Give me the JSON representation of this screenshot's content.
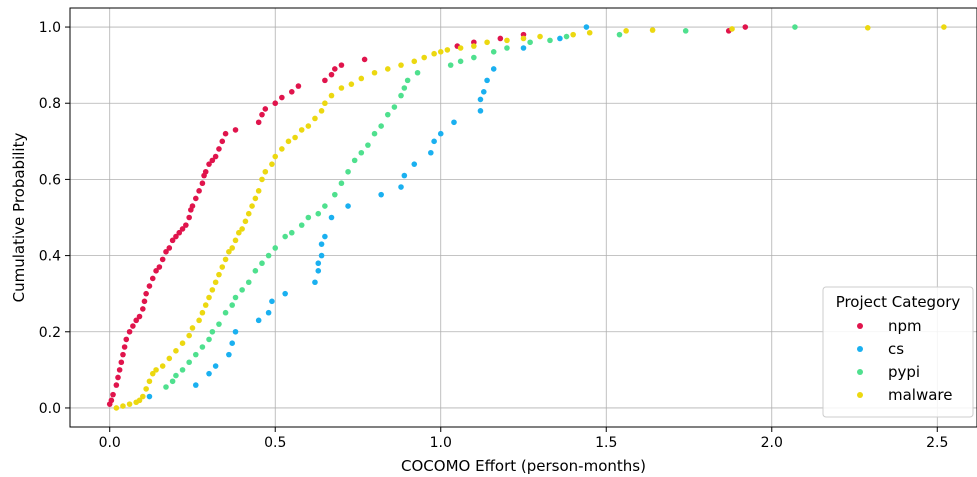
{
  "chart_data": {
    "type": "scatter",
    "title": "",
    "xlabel": "COCOMO Effort (person-months)",
    "ylabel": "Cumulative Probability",
    "xlim": [
      -0.12,
      2.62
    ],
    "ylim": [
      -0.05,
      1.05
    ],
    "xticks": [
      0.0,
      0.5,
      1.0,
      1.5,
      2.0,
      2.5
    ],
    "xtick_labels": [
      "0.0",
      "0.5",
      "1.0",
      "1.5",
      "2.0",
      "2.5"
    ],
    "yticks": [
      0.0,
      0.2,
      0.4,
      0.6,
      0.8,
      1.0
    ],
    "ytick_labels": [
      "0.0",
      "0.2",
      "0.4",
      "0.6",
      "0.8",
      "1.0"
    ],
    "grid": true,
    "legend": {
      "title": "Project Category",
      "placement": "lower-right"
    },
    "series": [
      {
        "name": "npm",
        "color": "#e0144c",
        "points": [
          [
            0.0,
            0.01
          ],
          [
            0.005,
            0.02
          ],
          [
            0.01,
            0.035
          ],
          [
            0.02,
            0.06
          ],
          [
            0.025,
            0.08
          ],
          [
            0.03,
            0.1
          ],
          [
            0.035,
            0.12
          ],
          [
            0.04,
            0.14
          ],
          [
            0.045,
            0.16
          ],
          [
            0.05,
            0.18
          ],
          [
            0.06,
            0.2
          ],
          [
            0.07,
            0.215
          ],
          [
            0.08,
            0.23
          ],
          [
            0.09,
            0.24
          ],
          [
            0.1,
            0.26
          ],
          [
            0.105,
            0.28
          ],
          [
            0.11,
            0.3
          ],
          [
            0.12,
            0.32
          ],
          [
            0.13,
            0.34
          ],
          [
            0.14,
            0.36
          ],
          [
            0.15,
            0.37
          ],
          [
            0.16,
            0.39
          ],
          [
            0.17,
            0.41
          ],
          [
            0.18,
            0.42
          ],
          [
            0.19,
            0.44
          ],
          [
            0.2,
            0.45
          ],
          [
            0.21,
            0.46
          ],
          [
            0.22,
            0.47
          ],
          [
            0.23,
            0.48
          ],
          [
            0.24,
            0.5
          ],
          [
            0.245,
            0.52
          ],
          [
            0.25,
            0.53
          ],
          [
            0.26,
            0.55
          ],
          [
            0.27,
            0.57
          ],
          [
            0.28,
            0.59
          ],
          [
            0.285,
            0.61
          ],
          [
            0.29,
            0.62
          ],
          [
            0.3,
            0.64
          ],
          [
            0.31,
            0.65
          ],
          [
            0.32,
            0.66
          ],
          [
            0.33,
            0.68
          ],
          [
            0.34,
            0.7
          ],
          [
            0.35,
            0.72
          ],
          [
            0.38,
            0.73
          ],
          [
            0.45,
            0.75
          ],
          [
            0.46,
            0.77
          ],
          [
            0.47,
            0.785
          ],
          [
            0.5,
            0.8
          ],
          [
            0.52,
            0.815
          ],
          [
            0.55,
            0.83
          ],
          [
            0.57,
            0.845
          ],
          [
            0.65,
            0.86
          ],
          [
            0.67,
            0.875
          ],
          [
            0.68,
            0.89
          ],
          [
            0.7,
            0.9
          ],
          [
            0.77,
            0.915
          ],
          [
            1.05,
            0.95
          ],
          [
            1.1,
            0.96
          ],
          [
            1.18,
            0.97
          ],
          [
            1.25,
            0.98
          ],
          [
            1.87,
            0.99
          ],
          [
            1.92,
            1.0
          ]
        ]
      },
      {
        "name": "cs",
        "color": "#1ab0f0",
        "points": [
          [
            0.12,
            0.03
          ],
          [
            0.26,
            0.06
          ],
          [
            0.3,
            0.09
          ],
          [
            0.32,
            0.11
          ],
          [
            0.36,
            0.14
          ],
          [
            0.37,
            0.17
          ],
          [
            0.38,
            0.2
          ],
          [
            0.45,
            0.23
          ],
          [
            0.48,
            0.25
          ],
          [
            0.49,
            0.28
          ],
          [
            0.53,
            0.3
          ],
          [
            0.62,
            0.33
          ],
          [
            0.63,
            0.36
          ],
          [
            0.63,
            0.38
          ],
          [
            0.64,
            0.4
          ],
          [
            0.64,
            0.43
          ],
          [
            0.65,
            0.45
          ],
          [
            0.67,
            0.5
          ],
          [
            0.72,
            0.53
          ],
          [
            0.82,
            0.56
          ],
          [
            0.88,
            0.58
          ],
          [
            0.89,
            0.61
          ],
          [
            0.92,
            0.64
          ],
          [
            0.97,
            0.67
          ],
          [
            0.98,
            0.7
          ],
          [
            1.0,
            0.72
          ],
          [
            1.04,
            0.75
          ],
          [
            1.12,
            0.78
          ],
          [
            1.12,
            0.81
          ],
          [
            1.13,
            0.83
          ],
          [
            1.14,
            0.86
          ],
          [
            1.16,
            0.89
          ],
          [
            1.25,
            0.945
          ],
          [
            1.36,
            0.97
          ],
          [
            1.44,
            1.0
          ]
        ]
      },
      {
        "name": "pypi",
        "color": "#4fe08e",
        "points": [
          [
            0.17,
            0.055
          ],
          [
            0.19,
            0.07
          ],
          [
            0.2,
            0.085
          ],
          [
            0.22,
            0.1
          ],
          [
            0.24,
            0.12
          ],
          [
            0.26,
            0.14
          ],
          [
            0.28,
            0.16
          ],
          [
            0.3,
            0.18
          ],
          [
            0.31,
            0.2
          ],
          [
            0.33,
            0.22
          ],
          [
            0.35,
            0.25
          ],
          [
            0.37,
            0.27
          ],
          [
            0.38,
            0.29
          ],
          [
            0.4,
            0.31
          ],
          [
            0.42,
            0.33
          ],
          [
            0.44,
            0.36
          ],
          [
            0.46,
            0.38
          ],
          [
            0.48,
            0.4
          ],
          [
            0.5,
            0.42
          ],
          [
            0.53,
            0.45
          ],
          [
            0.55,
            0.46
          ],
          [
            0.58,
            0.48
          ],
          [
            0.6,
            0.5
          ],
          [
            0.63,
            0.51
          ],
          [
            0.65,
            0.53
          ],
          [
            0.68,
            0.56
          ],
          [
            0.7,
            0.59
          ],
          [
            0.72,
            0.62
          ],
          [
            0.74,
            0.65
          ],
          [
            0.76,
            0.67
          ],
          [
            0.78,
            0.69
          ],
          [
            0.8,
            0.72
          ],
          [
            0.82,
            0.74
          ],
          [
            0.84,
            0.77
          ],
          [
            0.86,
            0.79
          ],
          [
            0.88,
            0.82
          ],
          [
            0.89,
            0.84
          ],
          [
            0.9,
            0.86
          ],
          [
            0.93,
            0.88
          ],
          [
            1.03,
            0.9
          ],
          [
            1.06,
            0.91
          ],
          [
            1.1,
            0.92
          ],
          [
            1.16,
            0.935
          ],
          [
            1.2,
            0.945
          ],
          [
            1.27,
            0.96
          ],
          [
            1.33,
            0.965
          ],
          [
            1.38,
            0.975
          ],
          [
            1.54,
            0.98
          ],
          [
            1.74,
            0.99
          ],
          [
            2.07,
            1.0
          ]
        ]
      },
      {
        "name": "malware",
        "color": "#ecd810",
        "points": [
          [
            0.02,
            0.0
          ],
          [
            0.04,
            0.005
          ],
          [
            0.06,
            0.01
          ],
          [
            0.08,
            0.015
          ],
          [
            0.09,
            0.02
          ],
          [
            0.1,
            0.03
          ],
          [
            0.11,
            0.05
          ],
          [
            0.12,
            0.07
          ],
          [
            0.13,
            0.09
          ],
          [
            0.14,
            0.1
          ],
          [
            0.16,
            0.11
          ],
          [
            0.18,
            0.13
          ],
          [
            0.2,
            0.15
          ],
          [
            0.22,
            0.17
          ],
          [
            0.24,
            0.19
          ],
          [
            0.25,
            0.21
          ],
          [
            0.27,
            0.23
          ],
          [
            0.28,
            0.25
          ],
          [
            0.29,
            0.27
          ],
          [
            0.3,
            0.29
          ],
          [
            0.31,
            0.31
          ],
          [
            0.32,
            0.33
          ],
          [
            0.33,
            0.35
          ],
          [
            0.34,
            0.37
          ],
          [
            0.35,
            0.39
          ],
          [
            0.36,
            0.41
          ],
          [
            0.37,
            0.42
          ],
          [
            0.38,
            0.44
          ],
          [
            0.39,
            0.46
          ],
          [
            0.4,
            0.47
          ],
          [
            0.41,
            0.49
          ],
          [
            0.42,
            0.51
          ],
          [
            0.43,
            0.53
          ],
          [
            0.44,
            0.55
          ],
          [
            0.45,
            0.57
          ],
          [
            0.46,
            0.6
          ],
          [
            0.47,
            0.62
          ],
          [
            0.49,
            0.64
          ],
          [
            0.5,
            0.66
          ],
          [
            0.52,
            0.68
          ],
          [
            0.54,
            0.7
          ],
          [
            0.56,
            0.71
          ],
          [
            0.58,
            0.73
          ],
          [
            0.6,
            0.74
          ],
          [
            0.62,
            0.76
          ],
          [
            0.64,
            0.78
          ],
          [
            0.65,
            0.8
          ],
          [
            0.67,
            0.82
          ],
          [
            0.7,
            0.84
          ],
          [
            0.73,
            0.85
          ],
          [
            0.76,
            0.865
          ],
          [
            0.8,
            0.88
          ],
          [
            0.84,
            0.89
          ],
          [
            0.88,
            0.9
          ],
          [
            0.92,
            0.91
          ],
          [
            0.95,
            0.92
          ],
          [
            0.98,
            0.93
          ],
          [
            1.0,
            0.935
          ],
          [
            1.02,
            0.94
          ],
          [
            1.06,
            0.945
          ],
          [
            1.1,
            0.95
          ],
          [
            1.14,
            0.96
          ],
          [
            1.2,
            0.965
          ],
          [
            1.25,
            0.97
          ],
          [
            1.3,
            0.975
          ],
          [
            1.4,
            0.98
          ],
          [
            1.45,
            0.985
          ],
          [
            1.56,
            0.99
          ],
          [
            1.64,
            0.992
          ],
          [
            1.88,
            0.995
          ],
          [
            2.29,
            0.998
          ],
          [
            2.52,
            1.0
          ]
        ]
      }
    ]
  }
}
